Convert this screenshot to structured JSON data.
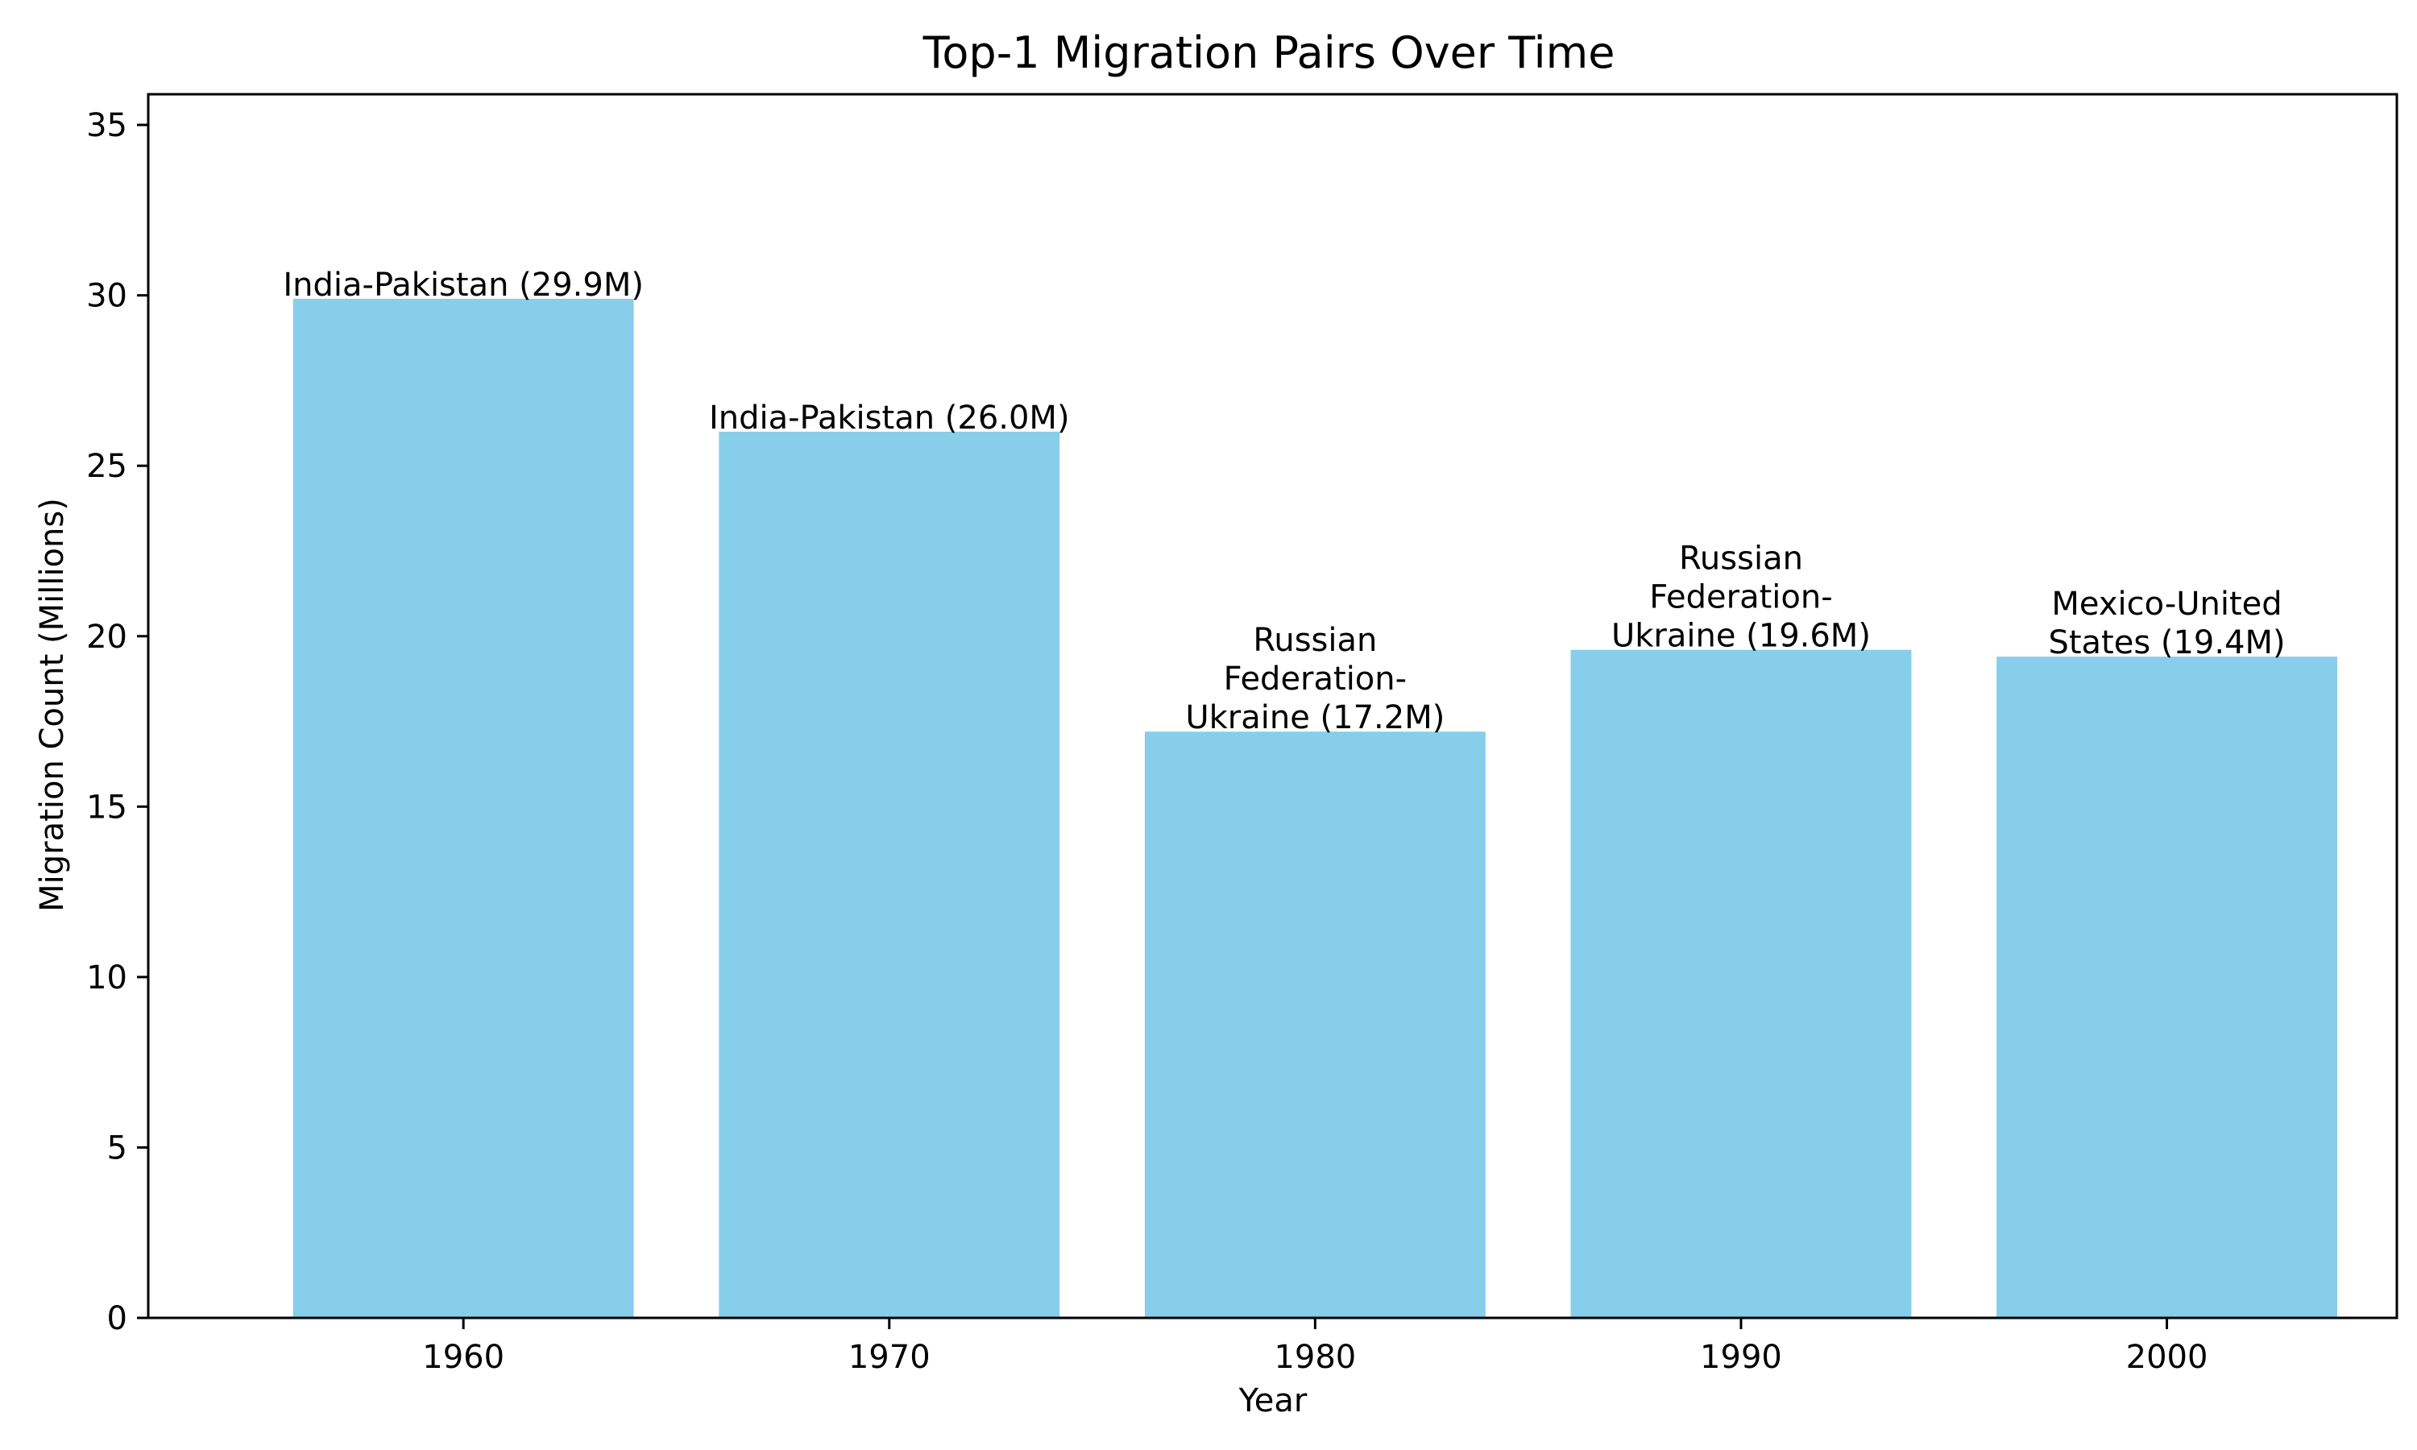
{
  "chart_data": {
    "type": "bar",
    "title": "Top-1 Migration Pairs Over Time",
    "xlabel": "Year",
    "ylabel": "Migration Count (Millions)",
    "categories": [
      "1960",
      "1970",
      "1980",
      "1990",
      "2000"
    ],
    "x_values": [
      1960,
      1970,
      1980,
      1990,
      2000
    ],
    "values": [
      29.9,
      26.0,
      17.2,
      19.6,
      19.4
    ],
    "bar_labels": [
      [
        "India-Pakistan (29.9M)"
      ],
      [
        "India-Pakistan (26.0M)"
      ],
      [
        "Russian",
        "Federation-",
        "Ukraine (17.2M)"
      ],
      [
        "Russian",
        "Federation-",
        "Ukraine (19.6M)"
      ],
      [
        "Mexico-United",
        "States (19.4M)"
      ]
    ],
    "yticks": [
      0,
      5,
      10,
      15,
      20,
      25,
      30,
      35
    ],
    "ylim": [
      0,
      35.9
    ],
    "xlim": [
      1952.6,
      2005.4
    ],
    "bar_width_years": 8,
    "grid": false,
    "legend": "none",
    "bar_color": "#87CEEB"
  }
}
